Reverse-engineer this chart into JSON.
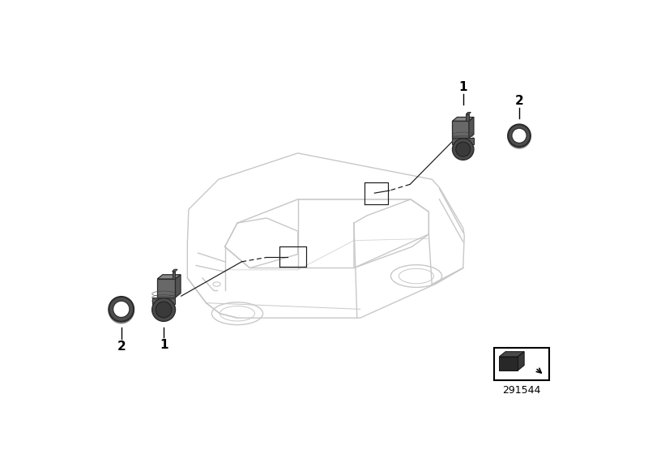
{
  "background_color": "#ffffff",
  "catalog_number": "291544",
  "figsize": [
    8.0,
    5.6
  ],
  "dpi": 100,
  "car_color": "#c8c8c8",
  "part_dark": "#545454",
  "part_mid": "#686868",
  "part_light": "#888888",
  "edge_color": "#2a2a2a",
  "line_color": "#1a1a1a",
  "label_fs": 11
}
